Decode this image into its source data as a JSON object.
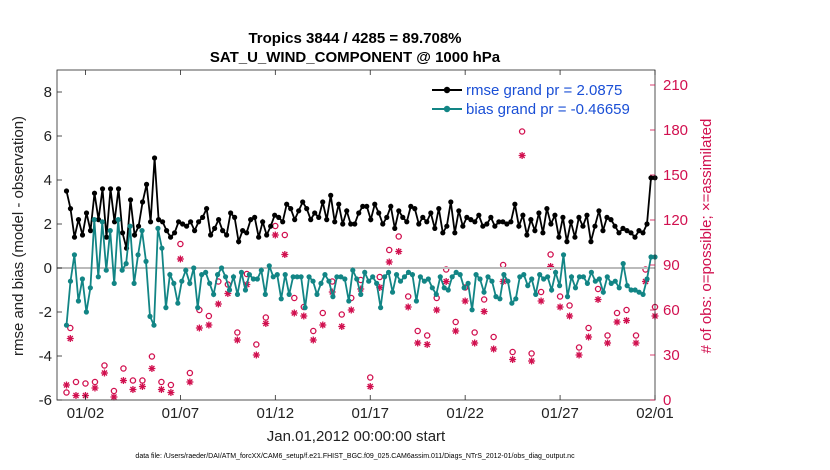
{
  "chart_data": {
    "type": "line",
    "title": "Tropics 3844 / 4285 = 89.708%",
    "subtitle": "SAT_U_WIND_COMPONENT @ 1000 hPa",
    "xlabel": "Jan.01,2012 00:00:00 start",
    "ylabel": "rmse and bias (model - observation)",
    "ylabel_right": "# of obs: o=possible; ×=assimilated",
    "footer": "data file: /Users/raeder/DAI/ATM_forcXX/CAM6_setup/f.e21.FHIST_BGC.f09_025.CAM6assim.011/Diags_NTrS_2012-01/obs_diag_output.nc",
    "xlim": [
      0.5,
      32
    ],
    "ylim": [
      -6,
      9
    ],
    "ylim_right": [
      0,
      220
    ],
    "x_ticks": [
      2,
      7,
      12,
      17,
      22,
      27,
      32
    ],
    "x_tick_labels": [
      "01/02",
      "01/07",
      "01/12",
      "01/17",
      "01/22",
      "01/27",
      "02/01"
    ],
    "y_ticks": [
      -6,
      -4,
      -2,
      0,
      2,
      4,
      6,
      8
    ],
    "y_tick_labels": [
      "-6",
      "-4",
      "-2",
      "0",
      "2",
      "4",
      "6",
      "8"
    ],
    "y_right_ticks": [
      0,
      30,
      60,
      90,
      120,
      150,
      180,
      210
    ],
    "y_right_tick_labels": [
      "0",
      "30",
      "60",
      "90",
      "120",
      "150",
      "180",
      "210"
    ],
    "colors": {
      "rmse": "#000000",
      "bias": "#128585",
      "obs": "#d1104f",
      "zero": "#bbbbbb",
      "legend_text": "#1a4fd6"
    },
    "series": [
      {
        "name": "rmse grand pr = 2.0875",
        "color": "#000000",
        "values": [
          3.5,
          2.7,
          1.4,
          2.2,
          1.5,
          2.5,
          1.7,
          3.4,
          2.2,
          3.6,
          1.4,
          3.6,
          2.1,
          3.6,
          1.6,
          0.9,
          3.1,
          1.5,
          1.9,
          3.0,
          3.8,
          2.1,
          5.0,
          2.2,
          2.1,
          1.7,
          1.4,
          1.6,
          2.1,
          2.0,
          1.9,
          2.1,
          1.7,
          2.1,
          2.3,
          2.7,
          1.5,
          1.8,
          2.2,
          1.7,
          1.5,
          2.5,
          2.3,
          1.2,
          1.7,
          1.6,
          2.2,
          2.3,
          1.4,
          2.1,
          1.5,
          1.9,
          2.4,
          2.3,
          2.1,
          2.9,
          2.7,
          2.2,
          2.6,
          3.0,
          2.7,
          2.2,
          2.5,
          2.3,
          3.0,
          2.2,
          3.3,
          2.1,
          2.9,
          2.0,
          2.6,
          2.0,
          2.0,
          2.5,
          2.8,
          2.8,
          2.2,
          2.9,
          2.5,
          2.0,
          2.3,
          2.8,
          1.8,
          2.6,
          2.3,
          2.1,
          2.8,
          2.7,
          2.0,
          2.3,
          2.1,
          2.5,
          1.8,
          2.7,
          1.6,
          1.9,
          3.0,
          1.6,
          2.6,
          1.9,
          2.3,
          2.2,
          2.1,
          2.4,
          1.9,
          2.0,
          2.3,
          1.9,
          2.1,
          2.1,
          2.0,
          2.1,
          2.9,
          1.9,
          2.4,
          1.5,
          2.2,
          1.7,
          2.5,
          1.6,
          2.7,
          2.0,
          2.4,
          1.4,
          2.3,
          1.2,
          2.1,
          1.4,
          2.3,
          1.9,
          2.4,
          1.2,
          1.9,
          2.6,
          1.7,
          2.3,
          2.2,
          1.9,
          1.6,
          1.8,
          1.7,
          1.6,
          1.4,
          1.7,
          1.6,
          2.0,
          4.1,
          4.1
        ]
      },
      {
        "name": "bias grand pr = -0.46659",
        "color": "#128585",
        "values": [
          -2.6,
          -0.6,
          0.6,
          -1.5,
          -0.5,
          -2.0,
          -0.9,
          2.2,
          -0.4,
          2.1,
          -0.1,
          1.7,
          -0.7,
          2.2,
          -0.1,
          0.2,
          1.9,
          -0.7,
          0.6,
          1.7,
          0.3,
          -2.2,
          -2.6,
          1.8,
          0.9,
          -1.8,
          -0.3,
          -0.7,
          -1.6,
          -0.6,
          -0.1,
          -0.7,
          0.0,
          -1.8,
          -0.3,
          -0.2,
          -0.7,
          -1.2,
          -0.3,
          0.0,
          -0.4,
          -1.0,
          -0.4,
          -1.2,
          -0.2,
          -1.0,
          -0.3,
          -0.5,
          -0.5,
          -0.1,
          -1.2,
          0.1,
          -0.4,
          -0.3,
          -1.4,
          -0.3,
          -1.2,
          -0.4,
          -0.4,
          -0.4,
          -1.8,
          -0.4,
          -0.6,
          -1.2,
          -0.7,
          -0.3,
          -0.6,
          -1.3,
          -0.4,
          -0.4,
          -0.5,
          -1.5,
          -0.1,
          -0.5,
          -1.2,
          -0.2,
          -0.6,
          -0.4,
          -0.7,
          -1.8,
          -0.4,
          -0.2,
          -1.1,
          -0.3,
          -0.6,
          -0.4,
          -0.2,
          -0.3,
          -1.5,
          -0.4,
          -0.6,
          -0.5,
          -0.9,
          -1.2,
          -0.4,
          -0.9,
          -1.0,
          -0.4,
          -0.2,
          -0.3,
          -0.9,
          -0.7,
          -1.9,
          -0.3,
          -0.5,
          -1.1,
          -0.4,
          -0.6,
          -1.3,
          -1.4,
          -0.3,
          -0.6,
          -1.6,
          -1.4,
          -0.4,
          -0.3,
          -0.8,
          -0.5,
          -1.2,
          -0.3,
          -0.5,
          -0.4,
          -1.0,
          -0.2,
          -0.8,
          0.6,
          -1.3,
          -0.4,
          -0.9,
          -0.4,
          -0.4,
          -0.7,
          -0.2,
          -0.6,
          -0.5,
          -1.1,
          -0.4,
          -0.7,
          -0.6,
          -0.9,
          0.2,
          -0.8,
          -1.0,
          -1.0,
          -1.1,
          -1.2,
          -0.5,
          0.5,
          0.5
        ]
      }
    ],
    "obs_possible": [
      [
        1.0,
        5
      ],
      [
        1.2,
        48
      ],
      [
        1.5,
        12
      ],
      [
        2.0,
        11
      ],
      [
        2.5,
        12
      ],
      [
        3.0,
        23
      ],
      [
        3.5,
        6
      ],
      [
        4.0,
        21
      ],
      [
        4.5,
        13
      ],
      [
        5.0,
        13
      ],
      [
        5.5,
        29
      ],
      [
        6.0,
        12
      ],
      [
        6.5,
        10
      ],
      [
        7.0,
        104
      ],
      [
        7.5,
        18
      ],
      [
        8.0,
        60
      ],
      [
        8.5,
        56
      ],
      [
        9.0,
        79
      ],
      [
        9.5,
        77
      ],
      [
        10.0,
        45
      ],
      [
        10.5,
        84
      ],
      [
        11.0,
        37
      ],
      [
        11.5,
        55
      ],
      [
        12.0,
        116
      ],
      [
        12.5,
        110
      ],
      [
        13.0,
        68
      ],
      [
        13.5,
        62
      ],
      [
        14.0,
        46
      ],
      [
        14.5,
        58
      ],
      [
        15.0,
        79
      ],
      [
        15.5,
        57
      ],
      [
        16.0,
        68
      ],
      [
        16.5,
        80
      ],
      [
        17.0,
        15
      ],
      [
        17.5,
        82
      ],
      [
        18.0,
        100
      ],
      [
        18.5,
        109
      ],
      [
        19.0,
        69
      ],
      [
        19.5,
        46
      ],
      [
        20.0,
        43
      ],
      [
        20.5,
        68
      ],
      [
        21.0,
        87
      ],
      [
        21.5,
        52
      ],
      [
        22.0,
        75
      ],
      [
        22.5,
        45
      ],
      [
        23.0,
        67
      ],
      [
        23.5,
        42
      ],
      [
        24.0,
        90
      ],
      [
        24.5,
        32
      ],
      [
        25.0,
        179
      ],
      [
        25.5,
        31
      ],
      [
        26.0,
        72
      ],
      [
        26.5,
        97
      ],
      [
        27.0,
        69
      ],
      [
        27.5,
        63
      ],
      [
        28.0,
        35
      ],
      [
        28.5,
        48
      ],
      [
        29.0,
        74
      ],
      [
        29.5,
        43
      ],
      [
        30.0,
        58
      ],
      [
        30.5,
        60
      ],
      [
        31.0,
        43
      ],
      [
        31.5,
        87
      ],
      [
        32.0,
        62
      ]
    ],
    "obs_assimilated": [
      [
        1.0,
        10
      ],
      [
        1.2,
        41
      ],
      [
        1.5,
        3
      ],
      [
        2.0,
        3
      ],
      [
        2.5,
        8
      ],
      [
        3.0,
        18
      ],
      [
        3.5,
        2
      ],
      [
        4.0,
        13
      ],
      [
        4.5,
        7
      ],
      [
        5.0,
        9
      ],
      [
        5.5,
        21
      ],
      [
        6.0,
        7
      ],
      [
        6.5,
        5
      ],
      [
        7.0,
        94
      ],
      [
        7.5,
        12
      ],
      [
        8.0,
        48
      ],
      [
        8.5,
        50
      ],
      [
        9.0,
        64
      ],
      [
        9.5,
        71
      ],
      [
        10.0,
        40
      ],
      [
        10.5,
        77
      ],
      [
        11.0,
        30
      ],
      [
        11.5,
        51
      ],
      [
        12.0,
        110
      ],
      [
        12.5,
        97
      ],
      [
        13.0,
        58
      ],
      [
        13.5,
        56
      ],
      [
        14.0,
        40
      ],
      [
        14.5,
        50
      ],
      [
        15.0,
        72
      ],
      [
        15.5,
        49
      ],
      [
        16.0,
        60
      ],
      [
        16.5,
        74
      ],
      [
        17.0,
        9
      ],
      [
        17.5,
        75
      ],
      [
        18.0,
        92
      ],
      [
        18.5,
        99
      ],
      [
        19.0,
        62
      ],
      [
        19.5,
        38
      ],
      [
        20.0,
        37
      ],
      [
        20.5,
        60
      ],
      [
        21.0,
        79
      ],
      [
        21.5,
        46
      ],
      [
        22.0,
        66
      ],
      [
        22.5,
        38
      ],
      [
        23.0,
        59
      ],
      [
        23.5,
        34
      ],
      [
        24.0,
        79
      ],
      [
        24.5,
        27
      ],
      [
        25.0,
        163
      ],
      [
        25.5,
        26
      ],
      [
        26.0,
        66
      ],
      [
        26.5,
        89
      ],
      [
        27.0,
        62
      ],
      [
        27.5,
        56
      ],
      [
        28.0,
        30
      ],
      [
        28.5,
        42
      ],
      [
        29.0,
        67
      ],
      [
        29.5,
        38
      ],
      [
        30.0,
        52
      ],
      [
        30.5,
        53
      ],
      [
        31.0,
        38
      ],
      [
        31.5,
        79
      ],
      [
        32.0,
        56
      ]
    ]
  }
}
